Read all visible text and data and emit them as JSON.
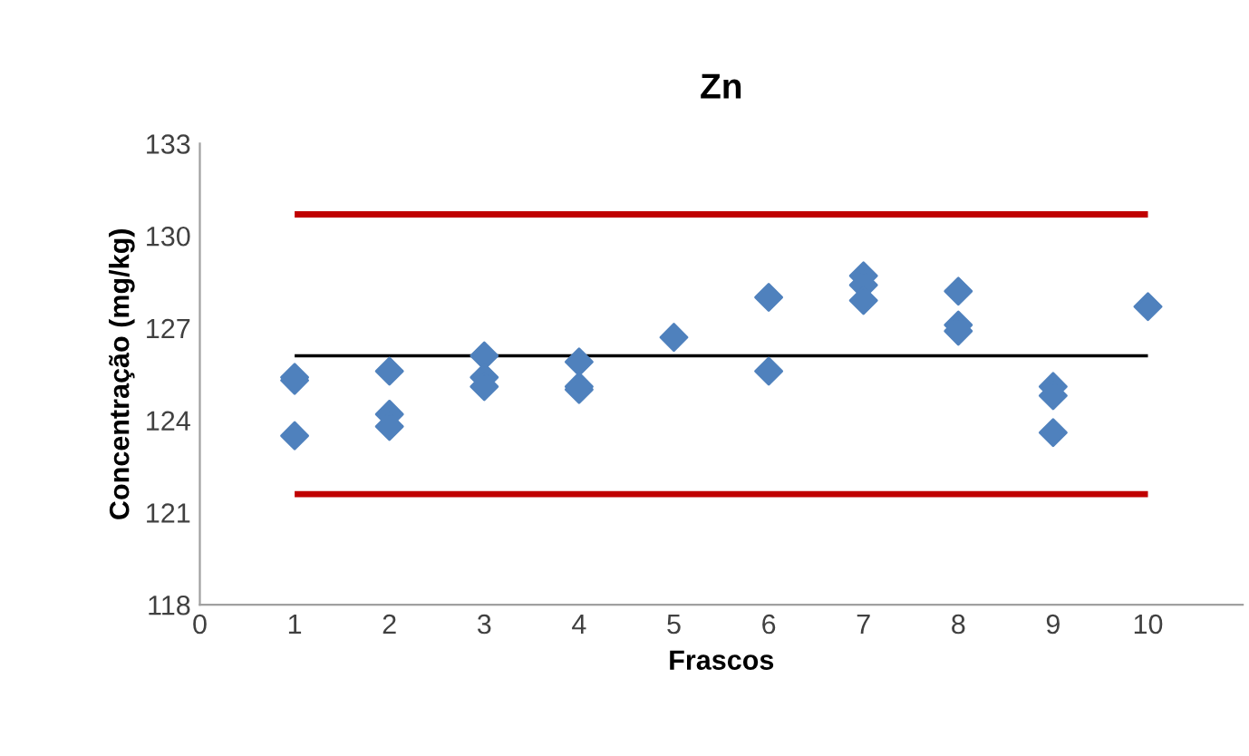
{
  "chart_data": {
    "type": "scatter",
    "title": "Zn",
    "xlabel": "Frascos",
    "ylabel": "Concentração (mg/kg)",
    "xlim": [
      0,
      11
    ],
    "xticks": [
      0,
      1,
      2,
      3,
      4,
      5,
      6,
      7,
      8,
      9,
      10
    ],
    "ylim": [
      118,
      133
    ],
    "yticks": [
      118,
      121,
      124,
      127,
      130,
      133
    ],
    "grid": false,
    "legend": false,
    "series": [
      {
        "marker": "diamond",
        "color": "#4f81bd",
        "x": [
          1,
          1,
          1,
          2,
          2,
          2,
          3,
          3,
          3,
          4,
          4,
          4,
          5,
          6,
          6,
          7,
          7,
          7,
          8,
          8,
          8,
          9,
          9,
          9,
          10
        ],
        "values": [
          125.4,
          125.3,
          123.5,
          125.6,
          124.2,
          123.8,
          126.1,
          125.4,
          125.1,
          125.9,
          125.1,
          125.0,
          126.7,
          128.0,
          125.6,
          128.7,
          128.4,
          127.9,
          128.2,
          127.1,
          126.9,
          125.1,
          124.8,
          123.6,
          127.7
        ]
      },
      {
        "type": "line",
        "marker": "none",
        "color": "#c00000",
        "x": [
          1,
          10
        ],
        "values": [
          130.7,
          130.7
        ]
      },
      {
        "type": "line",
        "marker": "none",
        "color": "#c00000",
        "x": [
          1,
          10
        ],
        "values": [
          121.6,
          121.6
        ]
      },
      {
        "type": "line",
        "marker": "none",
        "color": "#000000",
        "x": [
          1,
          10
        ],
        "values": [
          126.1,
          126.1
        ]
      }
    ]
  }
}
